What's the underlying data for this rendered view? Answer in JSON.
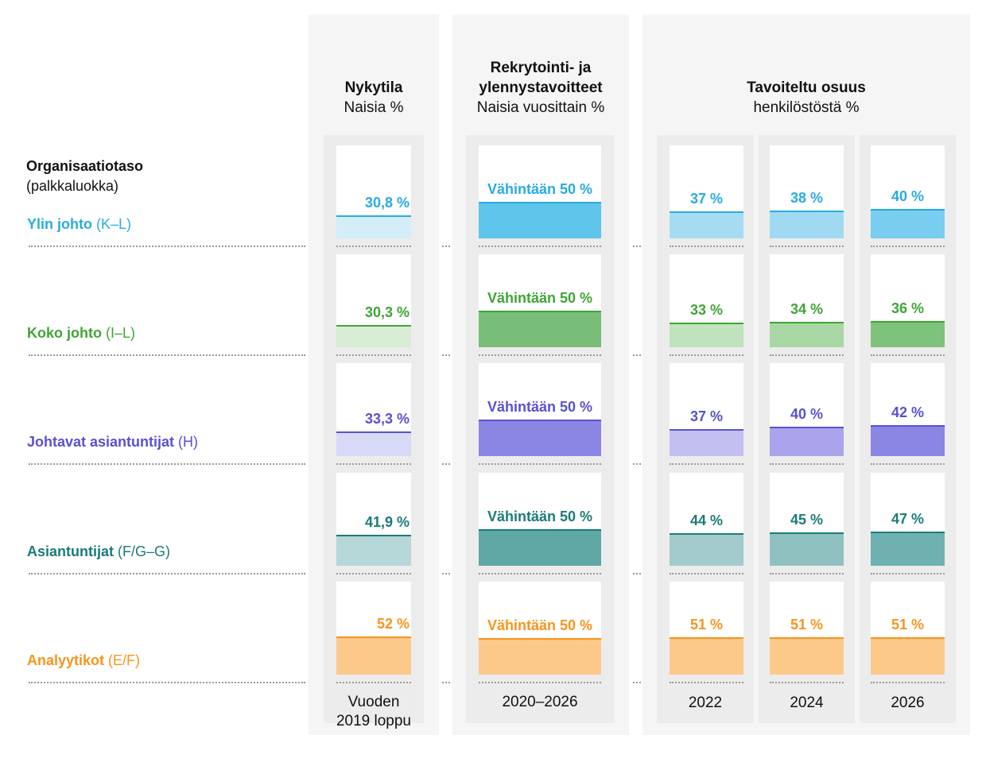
{
  "headers": {
    "current": {
      "line1": "Nykytila",
      "line2": "Naisia %"
    },
    "recruit": {
      "line1": "Rekrytointi- ja",
      "line2": "ylennystavoitteet",
      "line3": "Naisia vuosittain %"
    },
    "target": {
      "line1": "Tavoiteltu osuus",
      "line2": "henkilöstöstä %"
    }
  },
  "axis_title": {
    "bold": "Organisaatiotaso",
    "normal": "(palkkaluokka)"
  },
  "footers": {
    "current": {
      "line1": "Vuoden",
      "line2": "2019 loppu"
    },
    "recruit": "2020–2026",
    "y2022": "2022",
    "y2024": "2024",
    "y2026": "2026"
  },
  "chart_data": {
    "type": "table",
    "columns": [
      "Vuoden 2019 loppu",
      "2020–2026",
      "2022",
      "2024",
      "2026"
    ],
    "rows": [
      {
        "name": "Ylin johto",
        "code": "(K–L)",
        "color": "#29abe2",
        "cells": [
          {
            "label": "30,8 %",
            "value": 30.8
          },
          {
            "label": "Vähintään 50 %",
            "value": 50
          },
          {
            "label": "37 %",
            "value": 37
          },
          {
            "label": "38 %",
            "value": 38
          },
          {
            "label": "40 %",
            "value": 40
          }
        ]
      },
      {
        "name": "Koko johto",
        "code": "(I–L)",
        "color": "#3fa535",
        "cells": [
          {
            "label": "30,3 %",
            "value": 30.3
          },
          {
            "label": "Vähintään 50 %",
            "value": 50
          },
          {
            "label": "33 %",
            "value": 33
          },
          {
            "label": "34 %",
            "value": 34
          },
          {
            "label": "36 %",
            "value": 36
          }
        ]
      },
      {
        "name": "Johtavat asiantuntijat",
        "code": "(H)",
        "color": "#5a50d2",
        "cells": [
          {
            "label": "33,3 %",
            "value": 33.3
          },
          {
            "label": "Vähintään 50 %",
            "value": 50
          },
          {
            "label": "37 %",
            "value": 37
          },
          {
            "label": "40 %",
            "value": 40
          },
          {
            "label": "42 %",
            "value": 42
          }
        ]
      },
      {
        "name": "Asiantuntijat",
        "code": "(F/G–G)",
        "color": "#1a7b78",
        "cells": [
          {
            "label": "41,9 %",
            "value": 41.9
          },
          {
            "label": "Vähintään 50 %",
            "value": 50
          },
          {
            "label": "44 %",
            "value": 44
          },
          {
            "label": "45 %",
            "value": 45
          },
          {
            "label": "47 %",
            "value": 47
          }
        ]
      },
      {
        "name": "Analyytikot",
        "code": "(E/F)",
        "color": "#f7941d",
        "cells": [
          {
            "label": "52 %",
            "value": 52
          },
          {
            "label": "Vähintään 50 %",
            "value": 50
          },
          {
            "label": "51 %",
            "value": 51
          },
          {
            "label": "51 %",
            "value": 51
          },
          {
            "label": "51 %",
            "value": 51
          }
        ]
      }
    ],
    "fill_colors": {
      "Ylin johto": [
        "#d3eef8",
        "#5fc4ea",
        "#a5dcf2",
        "#a0daf2",
        "#78cdf0"
      ],
      "Koko johto": [
        "#d8ecd6",
        "#78be78",
        "#c0e2bd",
        "#a9d7a4",
        "#7ec37b"
      ],
      "Johtavat asiantuntijat": [
        "#d8d8f7",
        "#8b85e3",
        "#c3bff0",
        "#a9a4ec",
        "#8b85e3"
      ],
      "Asiantuntijat": [
        "#b6d7d7",
        "#5fa7a5",
        "#a3cbcb",
        "#8fc1c1",
        "#6fb1b0"
      ],
      "Analyytikot": [
        "#fdc98b",
        "#fdc98b",
        "#fdc98b",
        "#fdc98b",
        "#fdc98b"
      ]
    }
  }
}
